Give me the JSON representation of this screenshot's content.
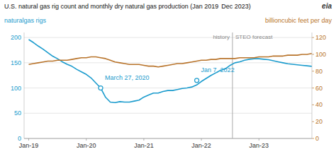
{
  "chart_data": {
    "type": "line",
    "title": "U.S. natural gas rig count and monthly dry natural gas production (Jan 2019",
    "subtitle": "Dec 2023)",
    "logo": "eia",
    "y_label": "naturalgas rigs",
    "y2_label": "billioncubic feet per day",
    "x": [
      2019.0,
      2019.083,
      2019.167,
      2019.25,
      2019.333,
      2019.417,
      2019.5,
      2019.583,
      2019.667,
      2019.75,
      2019.833,
      2019.917,
      2020.0,
      2020.083,
      2020.167,
      2020.25,
      2020.333,
      2020.417,
      2020.5,
      2020.583,
      2020.667,
      2020.75,
      2020.833,
      2020.917,
      2021.0,
      2021.083,
      2021.167,
      2021.25,
      2021.333,
      2021.417,
      2021.5,
      2021.583,
      2021.667,
      2021.75,
      2021.833,
      2021.917,
      2022.0,
      2022.083,
      2022.167,
      2022.25,
      2022.333,
      2022.417,
      2022.5,
      2022.583,
      2022.667,
      2022.75,
      2022.833,
      2022.917,
      2023.0,
      2023.083,
      2023.167,
      2023.25,
      2023.333,
      2023.417,
      2023.5,
      2023.583,
      2023.667,
      2023.75,
      2023.833,
      2023.917
    ],
    "series": [
      {
        "color": "#1a9bcd",
        "values": [
          196,
          190,
          183,
          177,
          170,
          163,
          158,
          152,
          147,
          143,
          137,
          132,
          127,
          120,
          110,
          100,
          82,
          72,
          71,
          73,
          72,
          72,
          74,
          76,
          82,
          86,
          90,
          90,
          93,
          95,
          95,
          97,
          99,
          100,
          102,
          106,
          113,
          119,
          125,
          130,
          135,
          138,
          145,
          150,
          152,
          155,
          157,
          158,
          158,
          157,
          156,
          154,
          152,
          150,
          148,
          147,
          146,
          145,
          144,
          143
        ]
      },
      {
        "color": "#b8732a",
        "axis": "y2",
        "values": [
          88,
          89,
          90,
          91,
          92,
          92,
          93,
          93,
          93,
          94,
          95,
          96,
          96,
          97,
          97,
          96,
          95,
          93,
          91,
          90,
          89,
          88,
          88,
          88,
          87,
          86,
          86,
          85,
          86,
          87,
          88,
          89,
          89,
          90,
          91,
          92,
          93,
          93,
          94,
          94,
          95,
          95,
          95,
          95,
          96,
          96,
          96,
          96,
          97,
          97,
          97,
          98,
          98,
          98,
          99,
          99,
          99,
          100,
          100,
          101
        ]
      }
    ],
    "xlim": [
      2018.92,
      2023.92
    ],
    "xticks": [
      {
        "value": 2019.0,
        "label": "Jan-19"
      },
      {
        "value": 2020.0,
        "label": "Jan-20"
      },
      {
        "value": 2021.0,
        "label": "Jan-21"
      },
      {
        "value": 2022.0,
        "label": "Jan-22"
      },
      {
        "value": 2023.0,
        "label": "Jan-23"
      }
    ],
    "ylim": [
      0,
      210
    ],
    "yticks": [
      0,
      50,
      100,
      150,
      200
    ],
    "y2lim": [
      0,
      126
    ],
    "y2ticks": [
      0,
      20,
      40,
      60,
      80,
      100,
      120
    ],
    "grid": true,
    "vline": {
      "x": 2022.54,
      "left_label": "history",
      "right_label": "STEO forecast"
    },
    "annotations": [
      {
        "x": 2020.25,
        "y": 100,
        "text": "March 27, 2020"
      },
      {
        "x": 2021.92,
        "y": 115,
        "text": "Jan 7, 2022"
      }
    ]
  }
}
